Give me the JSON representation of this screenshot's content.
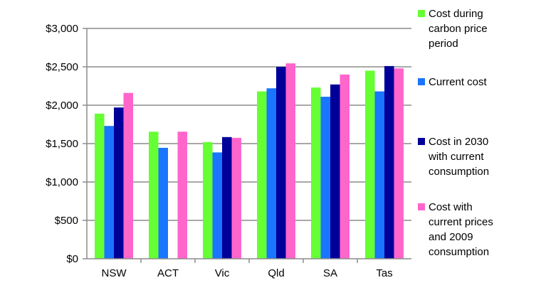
{
  "chart_data": {
    "type": "bar",
    "title": "",
    "xlabel": "",
    "ylabel": "",
    "categories": [
      "NSW",
      "ACT",
      "Vic",
      "Qld",
      "SA",
      "Tas"
    ],
    "ylim": [
      0,
      3000
    ],
    "yticks": [
      "$0",
      "$500",
      "$1,000",
      "$1,500",
      "$2,000",
      "$2,500",
      "$3,000"
    ],
    "ytick_values": [
      0,
      500,
      1000,
      1500,
      2000,
      2500,
      3000
    ],
    "grid": true,
    "legend_position": "right",
    "series": [
      {
        "name": "Cost during carbon price period",
        "legend_lines": [
          "Cost during",
          "carbon price",
          "period"
        ],
        "color": "#66ff33",
        "values": [
          1890,
          1655,
          1520,
          2180,
          2230,
          2450
        ]
      },
      {
        "name": "Current cost",
        "legend_lines": [
          "Current cost"
        ],
        "color": "#1a75ff",
        "values": [
          1730,
          1445,
          1385,
          2220,
          2110,
          2180
        ]
      },
      {
        "name": "Cost in 2030 with current consumption",
        "legend_lines": [
          "Cost in 2030",
          "with current",
          "consumption"
        ],
        "color": "#000099",
        "values": [
          1970,
          null,
          1585,
          2500,
          2270,
          2510
        ]
      },
      {
        "name": "Cost with current prices and 2009 consumption",
        "legend_lines": [
          "Cost with",
          "current prices",
          "and 2009",
          "consumption"
        ],
        "color": "#ff66cc",
        "values": [
          2160,
          1655,
          1575,
          2545,
          2400,
          2480
        ]
      }
    ]
  }
}
